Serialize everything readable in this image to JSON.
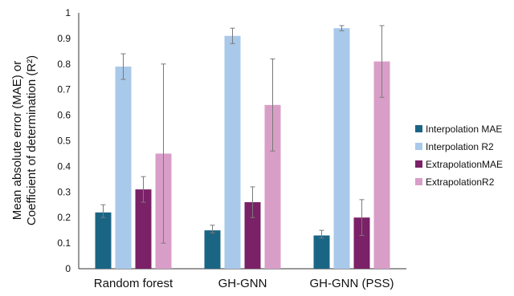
{
  "chart_data": {
    "type": "bar",
    "categories": [
      "Random forest",
      "GH-GNN",
      "GH-GNN (PSS)"
    ],
    "ylabel_lines": [
      "Mean absolute error (MAE) or",
      "Coefficient of determination (R²)"
    ],
    "ylim": [
      0,
      1
    ],
    "yticks": [
      "0",
      "0.1",
      "0.2",
      "0.3",
      "0.4",
      "0.5",
      "0.6",
      "0.7",
      "0.8",
      "0.9",
      "1"
    ],
    "grid": false,
    "legend_position": "right",
    "series": [
      {
        "name": "Interpolation MAE",
        "color": "#1b6584",
        "values": [
          0.22,
          0.15,
          0.13
        ],
        "err_low": [
          0.2,
          0.14,
          0.12
        ],
        "err_high": [
          0.25,
          0.17,
          0.15
        ]
      },
      {
        "name": "Interpolation R2",
        "color": "#a9c9ea",
        "values": [
          0.79,
          0.91,
          0.94
        ],
        "err_low": [
          0.74,
          0.88,
          0.93
        ],
        "err_high": [
          0.84,
          0.94,
          0.95
        ]
      },
      {
        "name": "ExtrapolationMAE",
        "color": "#7a2167",
        "values": [
          0.31,
          0.26,
          0.2
        ],
        "err_low": [
          0.26,
          0.2,
          0.13
        ],
        "err_high": [
          0.36,
          0.32,
          0.27
        ]
      },
      {
        "name": "ExtrapolationR2",
        "color": "#d99ec7",
        "values": [
          0.45,
          0.64,
          0.81
        ],
        "err_low": [
          0.1,
          0.46,
          0.67
        ],
        "err_high": [
          0.8,
          0.82,
          0.95
        ]
      }
    ]
  }
}
